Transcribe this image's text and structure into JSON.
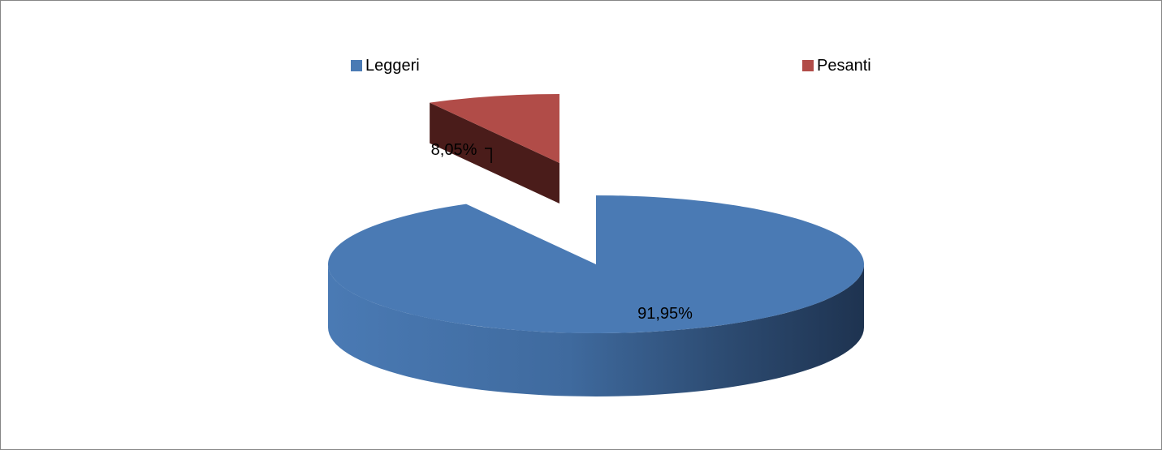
{
  "chart_data": {
    "type": "pie",
    "categories": [
      "Leggeri",
      "Pesanti"
    ],
    "values": [
      91.95,
      8.05
    ],
    "data_labels": [
      "91,95%",
      "8,05%"
    ],
    "colors": [
      "#4A7AB4",
      "#B14C48"
    ],
    "legend_position": "top",
    "style": "3d-exploded"
  },
  "legend": {
    "items": [
      {
        "label": "Leggeri",
        "color": "#4A7AB4"
      },
      {
        "label": "Pesanti",
        "color": "#B14C48"
      }
    ]
  }
}
